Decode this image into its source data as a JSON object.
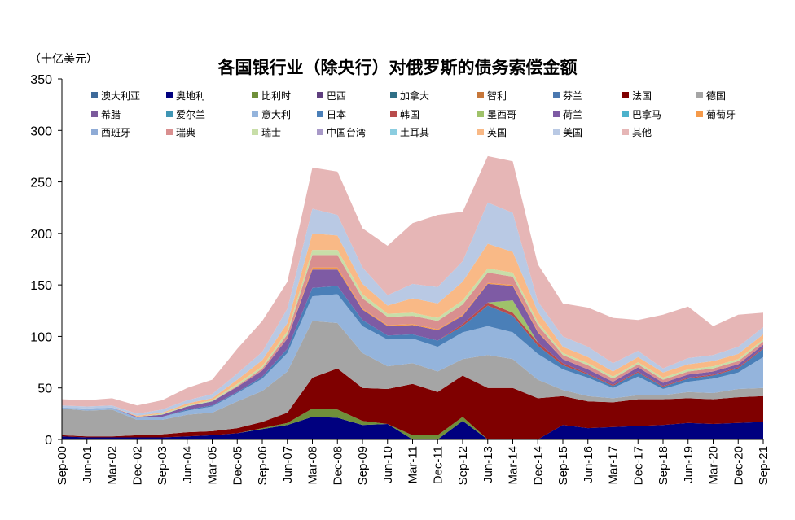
{
  "chart_data": {
    "type": "area",
    "stacked": true,
    "title": "各国银行业（除央行）对俄罗斯的债务索偿金额",
    "unit_label": "（十亿美元）",
    "xlabel": "",
    "ylabel": "",
    "ylim": [
      0,
      350
    ],
    "yticks": [
      0,
      50,
      100,
      150,
      200,
      250,
      300,
      350
    ],
    "x_tick_labels": [
      "Sep-00",
      "Jun-01",
      "Mar-02",
      "Dec-02",
      "Sep-03",
      "Jun-04",
      "Mar-05",
      "Dec-05",
      "Sep-06",
      "Jun-07",
      "Mar-08",
      "Dec-08",
      "Sep-09",
      "Jun-10",
      "Mar-11",
      "Dec-11",
      "Sep-12",
      "Jun-13",
      "Mar-14",
      "Dec-14",
      "Sep-15",
      "Jun-16",
      "Mar-17",
      "Dec-17",
      "Sep-18",
      "Jun-19",
      "Mar-20",
      "Dec-20",
      "Sep-21"
    ],
    "legend_position": "top",
    "grid": false,
    "x": [
      "Sep-00",
      "Jun-01",
      "Mar-02",
      "Dec-02",
      "Sep-03",
      "Jun-04",
      "Mar-05",
      "Dec-05",
      "Sep-06",
      "Jun-07",
      "Mar-08",
      "Dec-08",
      "Sep-09",
      "Jun-10",
      "Mar-11",
      "Dec-11",
      "Sep-12",
      "Jun-13",
      "Mar-14",
      "Dec-14",
      "Sep-15",
      "Jun-16",
      "Mar-17",
      "Dec-17",
      "Sep-18",
      "Jun-19",
      "Mar-20",
      "Dec-20",
      "Sep-21"
    ],
    "series": [
      {
        "name": "澳大利亚",
        "color": "#3e6a9a",
        "values": [
          0,
          0,
          0,
          0,
          0,
          0,
          0,
          0,
          0,
          0,
          0,
          0,
          0,
          0,
          0,
          0,
          0,
          0,
          0,
          0,
          0,
          0,
          0,
          0,
          0,
          0,
          0,
          0,
          0
        ]
      },
      {
        "name": "奥地利",
        "color": "#00007f",
        "values": [
          3,
          2,
          2,
          2,
          2,
          3,
          4,
          6,
          10,
          14,
          22,
          21,
          14,
          15,
          0,
          0,
          18,
          0,
          0,
          0,
          14,
          11,
          12,
          13,
          14,
          16,
          15,
          16,
          17
        ]
      },
      {
        "name": "比利时",
        "color": "#6f8f3a",
        "values": [
          0,
          0,
          0,
          0,
          0,
          0,
          0,
          0,
          1,
          2,
          8,
          8,
          4,
          0,
          4,
          4,
          4,
          0,
          0,
          0,
          0,
          0,
          0,
          0,
          0,
          0,
          0,
          0,
          0
        ]
      },
      {
        "name": "巴西",
        "color": "#5f3f7f",
        "values": [
          0,
          0,
          0,
          0,
          0,
          0,
          0,
          0,
          0,
          0,
          0,
          0,
          0,
          0,
          0,
          0,
          0,
          0,
          0,
          0,
          0,
          0,
          0,
          0,
          0,
          0,
          0,
          0,
          0
        ]
      },
      {
        "name": "加拿大",
        "color": "#2f6f86",
        "values": [
          0,
          0,
          0,
          0,
          0,
          0,
          0,
          0,
          0,
          0,
          0,
          0,
          0,
          0,
          0,
          0,
          0,
          0,
          0,
          0,
          0,
          0,
          0,
          0,
          0,
          0,
          0,
          0,
          0
        ]
      },
      {
        "name": "智利",
        "color": "#c7773a",
        "values": [
          0,
          0,
          0,
          0,
          0,
          0,
          0,
          0,
          0,
          0,
          0,
          0,
          0,
          0,
          0,
          0,
          0,
          0,
          0,
          0,
          0,
          0,
          0,
          0,
          0,
          0,
          0,
          0,
          0
        ]
      },
      {
        "name": "芬兰",
        "color": "#4a78b0",
        "values": [
          0,
          0,
          0,
          0,
          0,
          0,
          0,
          0,
          0,
          0,
          0,
          0,
          0,
          0,
          0,
          0,
          0,
          0,
          0,
          0,
          0,
          0,
          0,
          0,
          0,
          0,
          0,
          0,
          0
        ]
      },
      {
        "name": "法国",
        "color": "#7f0000",
        "values": [
          1,
          1,
          1,
          2,
          3,
          4,
          4,
          5,
          6,
          10,
          30,
          40,
          32,
          34,
          50,
          42,
          40,
          50,
          50,
          40,
          28,
          26,
          24,
          26,
          25,
          24,
          24,
          25,
          25
        ]
      },
      {
        "name": "德国",
        "color": "#a5a5a5",
        "values": [
          26,
          25,
          26,
          15,
          14,
          17,
          18,
          26,
          30,
          40,
          55,
          44,
          34,
          22,
          20,
          20,
          16,
          32,
          28,
          18,
          6,
          5,
          4,
          4,
          4,
          6,
          6,
          8,
          8
        ]
      },
      {
        "name": "希腊",
        "color": "#7b5a9c",
        "values": [
          0,
          0,
          0,
          0,
          0,
          0,
          0,
          0,
          0,
          0,
          0,
          0,
          0,
          0,
          0,
          0,
          0,
          0,
          0,
          0,
          0,
          0,
          0,
          0,
          0,
          0,
          0,
          0,
          0
        ]
      },
      {
        "name": "爱尔兰",
        "color": "#3f95b4",
        "values": [
          0,
          0,
          0,
          0,
          0,
          0,
          0,
          0,
          0,
          0,
          0,
          0,
          0,
          0,
          0,
          0,
          0,
          0,
          0,
          0,
          0,
          0,
          0,
          0,
          0,
          0,
          0,
          0,
          0
        ]
      },
      {
        "name": "意大利",
        "color": "#94b4dc",
        "values": [
          1,
          2,
          2,
          2,
          3,
          4,
          6,
          8,
          12,
          18,
          24,
          28,
          26,
          26,
          24,
          24,
          26,
          28,
          26,
          25,
          20,
          18,
          10,
          18,
          6,
          10,
          14,
          16,
          30
        ]
      },
      {
        "name": "日本",
        "color": "#4a7fb8",
        "values": [
          0,
          0,
          0,
          0,
          0,
          1,
          1,
          1,
          2,
          4,
          8,
          8,
          6,
          4,
          4,
          6,
          6,
          20,
          16,
          8,
          4,
          3,
          2,
          4,
          2,
          3,
          3,
          4,
          8
        ]
      },
      {
        "name": "韩国",
        "color": "#b84b4b",
        "values": [
          0,
          0,
          0,
          0,
          0,
          0,
          0,
          0,
          0,
          0,
          0,
          0,
          0,
          0,
          0,
          0,
          2,
          3,
          3,
          3,
          2,
          1,
          1,
          1,
          1,
          1,
          1,
          1,
          1
        ]
      },
      {
        "name": "墨西哥",
        "color": "#9fc26a",
        "values": [
          0,
          0,
          0,
          0,
          0,
          0,
          0,
          0,
          0,
          0,
          0,
          0,
          0,
          0,
          0,
          0,
          0,
          0,
          12,
          0,
          0,
          0,
          0,
          0,
          0,
          0,
          0,
          0,
          0
        ]
      },
      {
        "name": "荷兰",
        "color": "#7e5ba4",
        "values": [
          0,
          0,
          0,
          1,
          2,
          3,
          4,
          5,
          6,
          10,
          18,
          16,
          10,
          9,
          9,
          10,
          8,
          18,
          14,
          10,
          4,
          4,
          3,
          4,
          3,
          3,
          3,
          3,
          3
        ]
      },
      {
        "name": "巴拿马",
        "color": "#4db2cc",
        "values": [
          0,
          0,
          0,
          0,
          0,
          0,
          0,
          0,
          0,
          0,
          0,
          0,
          0,
          0,
          0,
          0,
          0,
          0,
          0,
          0,
          0,
          0,
          0,
          0,
          0,
          0,
          0,
          0,
          0
        ]
      },
      {
        "name": "葡萄牙",
        "color": "#f59a4a",
        "values": [
          0,
          0,
          0,
          0,
          0,
          0,
          0,
          0,
          0,
          0,
          2,
          2,
          1,
          1,
          1,
          1,
          1,
          1,
          1,
          1,
          0,
          0,
          0,
          0,
          0,
          0,
          0,
          0,
          0
        ]
      },
      {
        "name": "西班牙",
        "color": "#8fabd6",
        "values": [
          0,
          0,
          0,
          0,
          0,
          0,
          0,
          0,
          0,
          0,
          0,
          0,
          0,
          0,
          0,
          0,
          0,
          0,
          0,
          0,
          0,
          0,
          0,
          0,
          0,
          0,
          0,
          0,
          0
        ]
      },
      {
        "name": "瑞典",
        "color": "#d98f8f",
        "values": [
          0,
          0,
          0,
          0,
          0,
          0,
          0,
          1,
          2,
          4,
          12,
          12,
          10,
          8,
          8,
          8,
          10,
          10,
          8,
          6,
          4,
          4,
          3,
          3,
          3,
          3,
          3,
          3,
          3
        ]
      },
      {
        "name": "瑞士",
        "color": "#c8dea8",
        "values": [
          0,
          0,
          0,
          0,
          1,
          1,
          1,
          2,
          2,
          3,
          5,
          5,
          4,
          3,
          3,
          3,
          4,
          4,
          4,
          3,
          2,
          2,
          2,
          2,
          2,
          2,
          2,
          2,
          2
        ]
      },
      {
        "name": "中国台湾",
        "color": "#a899c8",
        "values": [
          0,
          0,
          0,
          0,
          0,
          0,
          0,
          0,
          0,
          0,
          0,
          0,
          0,
          0,
          0,
          0,
          0,
          0,
          0,
          0,
          0,
          0,
          0,
          0,
          0,
          0,
          0,
          0,
          0
        ]
      },
      {
        "name": "土耳其",
        "color": "#8bcde0",
        "values": [
          0,
          0,
          0,
          0,
          0,
          0,
          0,
          0,
          0,
          0,
          0,
          0,
          0,
          0,
          0,
          0,
          0,
          0,
          0,
          0,
          0,
          0,
          0,
          0,
          0,
          0,
          0,
          0,
          0
        ]
      },
      {
        "name": "英国",
        "color": "#f9b986",
        "values": [
          0,
          0,
          0,
          1,
          1,
          2,
          2,
          4,
          6,
          8,
          16,
          14,
          10,
          8,
          14,
          14,
          18,
          24,
          20,
          10,
          6,
          6,
          5,
          5,
          5,
          5,
          5,
          5,
          5
        ]
      },
      {
        "name": "美国",
        "color": "#b9c9e4",
        "values": [
          2,
          2,
          2,
          2,
          3,
          3,
          4,
          6,
          8,
          14,
          24,
          20,
          16,
          10,
          14,
          16,
          20,
          40,
          38,
          10,
          10,
          10,
          8,
          6,
          4,
          6,
          6,
          7,
          7
        ]
      },
      {
        "name": "其他",
        "color": "#e6b6b6",
        "values": [
          6,
          6,
          7,
          8,
          9,
          12,
          14,
          24,
          30,
          26,
          40,
          42,
          38,
          48,
          59,
          70,
          48,
          45,
          50,
          36,
          32,
          38,
          44,
          30,
          52,
          50,
          28,
          31,
          14
        ]
      }
    ]
  }
}
